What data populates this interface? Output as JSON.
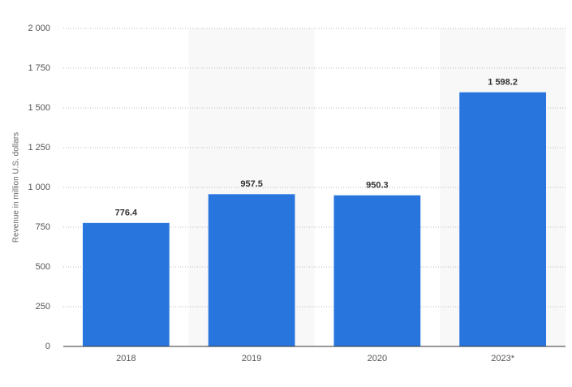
{
  "chart_data": {
    "type": "bar",
    "y_label": "Revenue in million U.S. dollars",
    "categories": [
      "2018",
      "2019",
      "2020",
      "2023*"
    ],
    "values": [
      776.4,
      957.5,
      950.3,
      1598.2
    ],
    "value_labels": [
      "776.4",
      "957.5",
      "950.3",
      "1 598.2"
    ],
    "color": "#2876dd",
    "ylim": [
      0,
      2000
    ],
    "yticks": [
      0,
      250,
      500,
      750,
      {
        "value": 1000,
        "label": "1 000"
      },
      {
        "value": 1250,
        "label": "1 250"
      },
      {
        "value": 1500,
        "label": "1 500"
      },
      {
        "value": 1750,
        "label": "1 750"
      },
      {
        "value": 2000,
        "label": "2 000"
      }
    ],
    "grid": true
  }
}
